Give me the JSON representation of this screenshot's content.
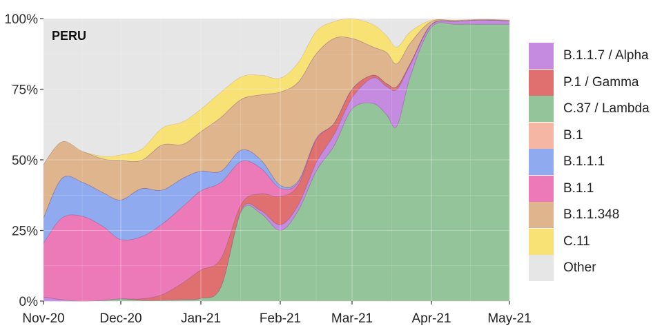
{
  "chart_data": {
    "type": "area",
    "stacked": true,
    "normalized": true,
    "title": "PERU",
    "xlabel": "",
    "ylabel": "",
    "ylim": [
      0,
      100
    ],
    "y_ticks": [
      "0%",
      "25%",
      "50%",
      "75%",
      "100%"
    ],
    "y_tick_values": [
      0,
      25,
      50,
      75,
      100
    ],
    "x_ticks": [
      "Nov-20",
      "Dec-20",
      "Jan-21",
      "Feb-21",
      "Mar-21",
      "Apr-21",
      "May-21"
    ],
    "x_tick_positions": [
      63,
      175,
      291,
      406,
      510,
      625,
      738
    ],
    "grid": true,
    "legend_position": "right",
    "x_positions": [
      63,
      90,
      120,
      150,
      175,
      205,
      235,
      265,
      291,
      320,
      350,
      378,
      406,
      432,
      458,
      484,
      510,
      540,
      560,
      575,
      595,
      625,
      660,
      700,
      738
    ],
    "stack_order_bottom_to_top": [
      "C.37 / Lambda",
      "B.1.1.7 / Alpha",
      "P.1 / Gamma",
      "B.1.1",
      "B.1.1.1",
      "B.1",
      "B.1.1.348",
      "C.11",
      "Other"
    ],
    "series": [
      {
        "name": "C.37 / Lambda",
        "color": "#93c49a",
        "values": [
          0,
          0,
          0,
          0.3,
          0.8,
          0.3,
          0.3,
          0.5,
          1.0,
          5,
          32,
          31,
          25,
          32,
          46,
          55,
          68,
          70,
          66,
          62,
          80,
          97,
          98,
          98,
          98
        ]
      },
      {
        "name": "B.1.1.7 / Alpha",
        "color": "#c58be0",
        "values": [
          1.5,
          0.5,
          0,
          0,
          0,
          0,
          0,
          0,
          0,
          0,
          0.5,
          1,
          2,
          2,
          3,
          4,
          4,
          9,
          10,
          13,
          4,
          0.8,
          1,
          1.5,
          1.2
        ]
      },
      {
        "name": "P.1 / Gamma",
        "color": "#e07070",
        "values": [
          0,
          0,
          0,
          0,
          0,
          0.5,
          2,
          6,
          10,
          10,
          2,
          6,
          10,
          7,
          8,
          4,
          3,
          1,
          1,
          1,
          0.5,
          0.2,
          0,
          0,
          0
        ]
      },
      {
        "name": "B.1.1",
        "color": "#ec7ab8",
        "values": [
          19,
          29,
          30,
          26,
          21,
          22,
          25,
          27,
          28,
          27,
          15,
          9,
          3,
          1,
          0.5,
          0,
          0,
          0,
          0,
          0,
          0,
          0,
          0,
          0,
          0
        ]
      },
      {
        "name": "B.1.1.1",
        "color": "#8faaee",
        "values": [
          9,
          14,
          12,
          12,
          14,
          17,
          12,
          10,
          7,
          4,
          4,
          3,
          1,
          0.5,
          0,
          0,
          0,
          0,
          0,
          0,
          0,
          0,
          0,
          0,
          0
        ]
      },
      {
        "name": "B.1",
        "color": "#f5b7a3",
        "values": [
          0,
          0,
          0,
          0,
          0,
          0,
          0,
          0,
          0,
          0,
          0,
          0,
          0,
          0,
          0,
          0,
          0,
          0,
          0,
          0,
          0,
          0,
          0,
          0,
          0
        ]
      },
      {
        "name": "B.1.1.348",
        "color": "#deb58c",
        "values": [
          19,
          13,
          11,
          12,
          14,
          10,
          16,
          12,
          14,
          19,
          18,
          23,
          33,
          35,
          30,
          30,
          18,
          10,
          11,
          8,
          7,
          1,
          0.3,
          0.2,
          0.2
        ]
      },
      {
        "name": "C.11",
        "color": "#f8e175",
        "values": [
          0,
          0,
          0,
          1,
          2,
          4,
          6,
          8,
          8,
          9,
          8,
          7,
          5,
          7,
          8,
          6,
          9,
          8,
          6,
          6,
          4,
          0.5,
          0.2,
          0.1,
          0.1
        ]
      },
      {
        "name": "Other",
        "color": "#e6e6e6",
        "values": [
          51.5,
          43.5,
          47,
          48.7,
          48.2,
          46.2,
          38.7,
          36.5,
          32,
          26,
          20.5,
          20,
          21,
          15.5,
          4.5,
          5,
          -2,
          2,
          6,
          10,
          4.5,
          0.5,
          0.5,
          0.2,
          0.5
        ]
      }
    ]
  },
  "legend": {
    "items": [
      {
        "label": "B.1.1.7 / Alpha",
        "color": "#c58be0"
      },
      {
        "label": "P.1 / Gamma",
        "color": "#e07070"
      },
      {
        "label": "C.37 / Lambda",
        "color": "#93c49a"
      },
      {
        "label": "B.1",
        "color": "#f5b7a3"
      },
      {
        "label": "B.1.1.1",
        "color": "#8faaee"
      },
      {
        "label": "B.1.1",
        "color": "#ec7ab8"
      },
      {
        "label": "B.1.1.348",
        "color": "#deb58c"
      },
      {
        "label": "C.11",
        "color": "#f8e175"
      },
      {
        "label": "Other",
        "color": "#e6e6e6"
      }
    ]
  },
  "panel": {
    "title": "PERU"
  },
  "colors": {
    "plot_background": "#ebebeb",
    "gridline": "#f7f7f7"
  }
}
